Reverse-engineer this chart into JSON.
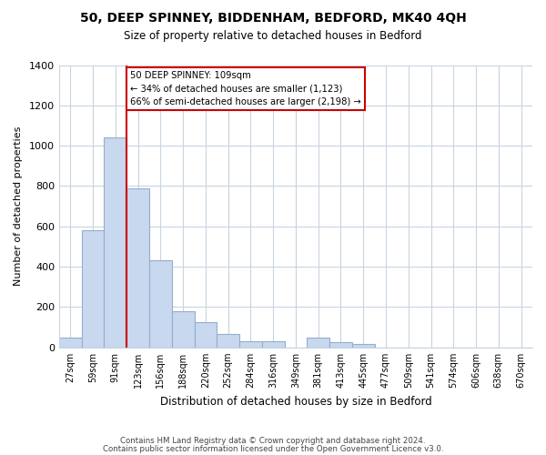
{
  "title": "50, DEEP SPINNEY, BIDDENHAM, BEDFORD, MK40 4QH",
  "subtitle": "Size of property relative to detached houses in Bedford",
  "xlabel": "Distribution of detached houses by size in Bedford",
  "ylabel": "Number of detached properties",
  "bar_color": "#c8d8ee",
  "bar_edge_color": "#94aecb",
  "bin_labels": [
    "27sqm",
    "59sqm",
    "91sqm",
    "123sqm",
    "156sqm",
    "188sqm",
    "220sqm",
    "252sqm",
    "284sqm",
    "316sqm",
    "349sqm",
    "381sqm",
    "413sqm",
    "445sqm",
    "477sqm",
    "509sqm",
    "541sqm",
    "574sqm",
    "606sqm",
    "638sqm",
    "670sqm"
  ],
  "bar_values": [
    50,
    580,
    1040,
    790,
    430,
    180,
    125,
    65,
    30,
    30,
    0,
    50,
    25,
    15,
    0,
    0,
    0,
    0,
    0,
    0,
    0
  ],
  "ylim": [
    0,
    1400
  ],
  "yticks": [
    0,
    200,
    400,
    600,
    800,
    1000,
    1200,
    1400
  ],
  "vline_color": "#cc0000",
  "annotation_text": "50 DEEP SPINNEY: 109sqm\n← 34% of detached houses are smaller (1,123)\n66% of semi-detached houses are larger (2,198) →",
  "annotation_box_color": "#ffffff",
  "annotation_box_edge": "#cc0000",
  "footnote1": "Contains HM Land Registry data © Crown copyright and database right 2024.",
  "footnote2": "Contains public sector information licensed under the Open Government Licence v3.0.",
  "background_color": "#ffffff",
  "grid_color": "#c8d4e0"
}
